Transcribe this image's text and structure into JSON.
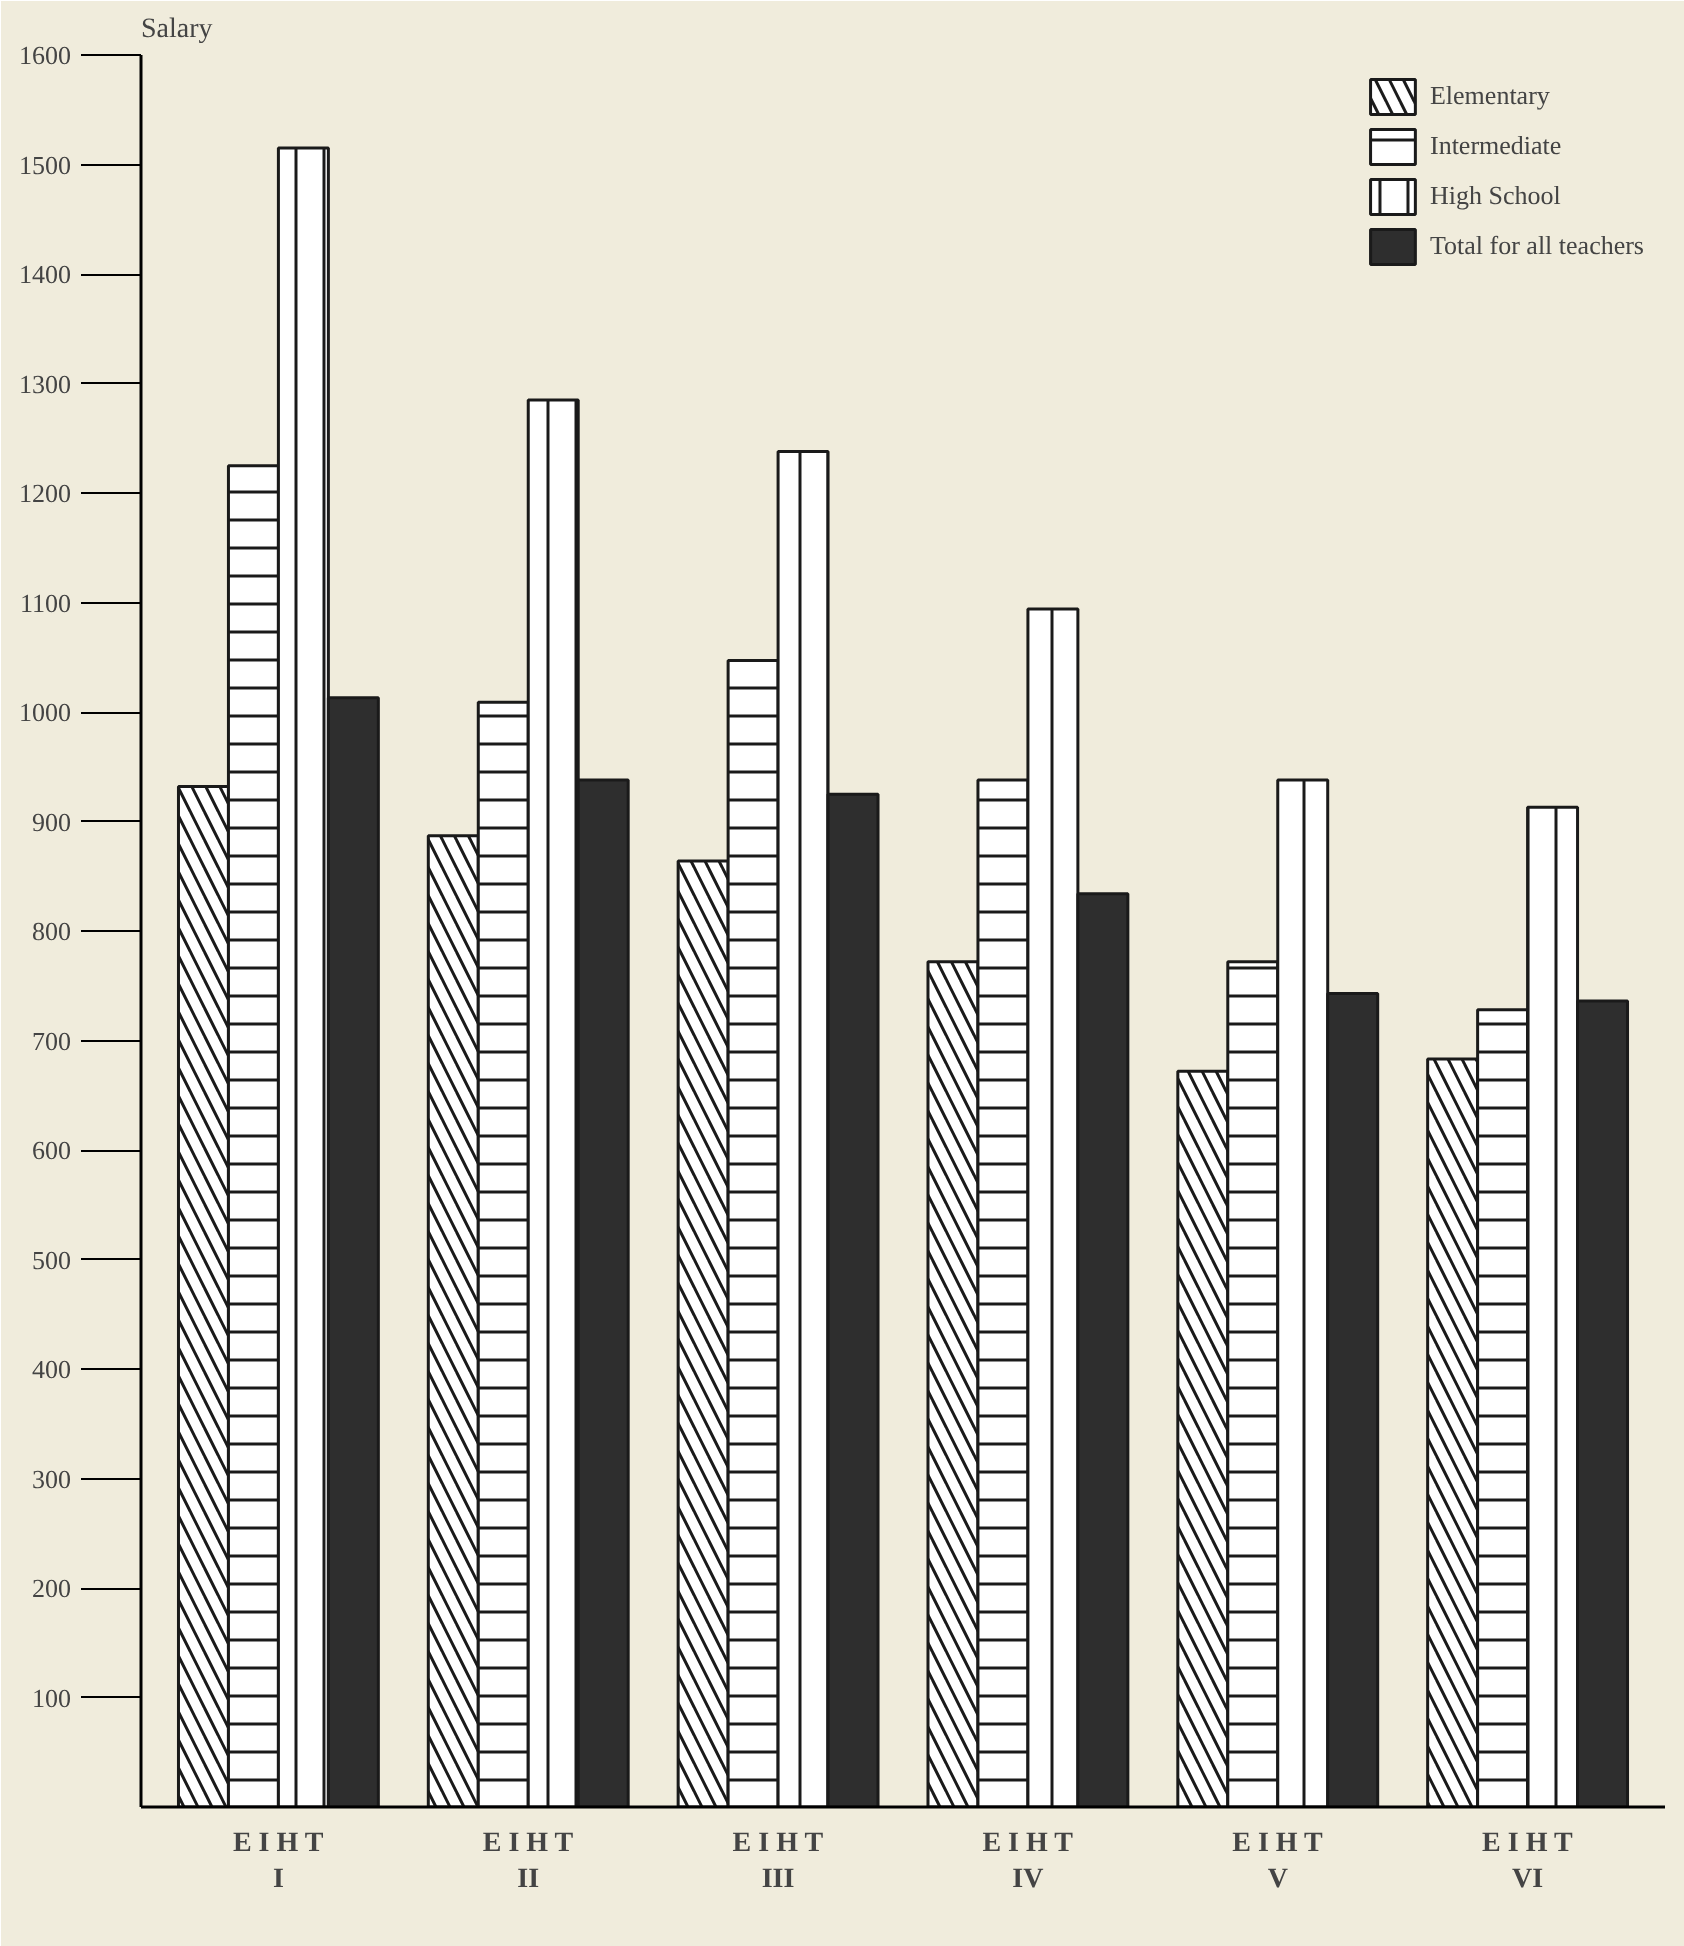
{
  "chart_data": {
    "type": "bar",
    "ylabel": "Salary",
    "categories": [
      "I",
      "II",
      "III",
      "IV",
      "V",
      "VI"
    ],
    "annotations": [
      "E I H T",
      "E I H T",
      "E I H T",
      "E I H T",
      "E I H T",
      "E I H T"
    ],
    "series": [
      {
        "name": "Elementary",
        "color": "#ffffff",
        "values": [
          932,
          887,
          864,
          772,
          672,
          683
        ]
      },
      {
        "name": "Intermediate",
        "color": "#ffffff",
        "values": [
          1225,
          1009,
          1047,
          938,
          772,
          728
        ]
      },
      {
        "name": "High School",
        "color": "#ffffff",
        "values": [
          1515,
          1285,
          1238,
          1094,
          938,
          913
        ]
      },
      {
        "name": "Total for all teachers",
        "color": "#2e2e2e",
        "values": [
          1013,
          938,
          925,
          834,
          743,
          736
        ]
      }
    ],
    "ylim": [
      0,
      1600
    ],
    "yticks": [
      100,
      200,
      300,
      400,
      500,
      600,
      700,
      800,
      900,
      1000,
      1100,
      1200,
      1300,
      1400,
      1500,
      1600
    ],
    "grid": false,
    "legend": "top right"
  }
}
